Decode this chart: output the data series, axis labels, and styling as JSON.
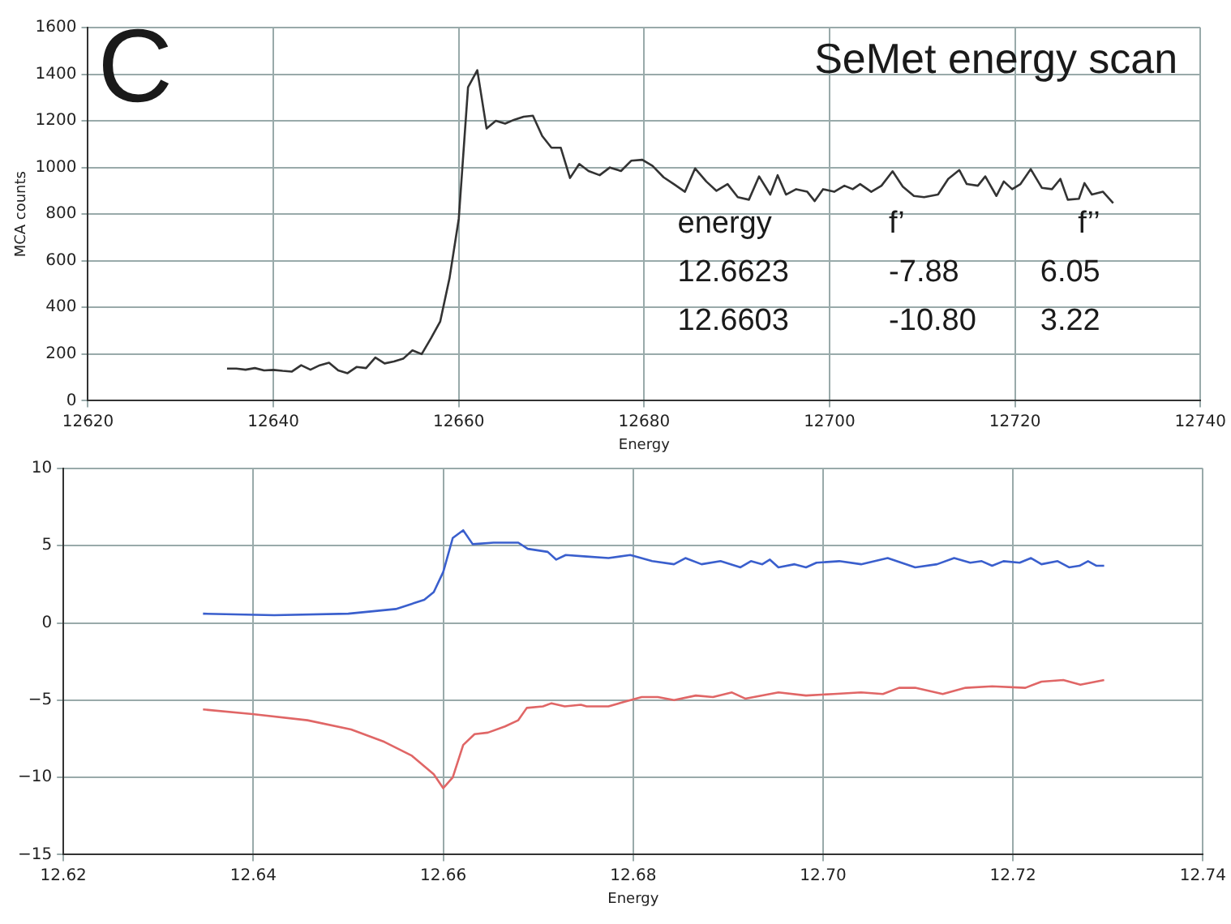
{
  "chart_data": [
    {
      "type": "line",
      "xlabel": "Energy",
      "ylabel": "MCA counts",
      "xlim": [
        12620,
        12740
      ],
      "xticks": [
        12620,
        12640,
        12660,
        12680,
        12700,
        12720,
        12740
      ],
      "ylim": [
        0,
        1600
      ],
      "yticks": [
        0,
        200,
        400,
        600,
        800,
        1000,
        1200,
        1400,
        1600
      ],
      "grid": true,
      "annotations": [
        "C",
        "SeMet energy scan",
        "energy",
        "f’",
        "f’’",
        "12.6623",
        "-7.88",
        "6.05",
        "12.6603",
        "-10.80",
        "3.22"
      ],
      "series": [
        {
          "color": "#333333",
          "x": [
            12635,
            12636,
            12637,
            12638,
            12639,
            12640,
            12641,
            12642,
            12643,
            12644,
            12645,
            12646,
            12647,
            12648,
            12649,
            12650,
            12651,
            12652,
            12653,
            12654,
            12655,
            12656,
            12657,
            12658,
            12659,
            12660,
            12661,
            12662,
            12663,
            12664,
            12665,
            12666,
            12667,
            12668,
            12669,
            12670,
            12671,
            12672,
            12673,
            12674,
            12675.2,
            12676.3,
            12677.5,
            12678.6,
            12679.8,
            12680.9,
            12682.1,
            12683.2,
            12684.4,
            12685.5,
            12686.7,
            12687.8,
            12689.0,
            12690.1,
            12691.3,
            12692.4,
            12693.6,
            12694.4,
            12695.3,
            12696.4,
            12697.6,
            12698.4,
            12699.3,
            12700.5,
            12701.6,
            12702.5,
            12703.3,
            12704.5,
            12705.6,
            12706.8,
            12707.9,
            12709.1,
            12710.2,
            12711.7,
            12712.8,
            12714.0,
            12714.8,
            12716.0,
            12716.8,
            12718.0,
            12718.8,
            12719.7,
            12720.6,
            12721.7,
            12722.9,
            12724.0,
            12724.9,
            12725.7,
            12726.9,
            12727.5,
            12728.3,
            12729.5,
            12730.6
          ],
          "values": [
            138,
            138,
            133,
            140,
            130,
            132,
            128,
            125,
            152,
            133,
            152,
            163,
            130,
            118,
            145,
            140,
            185,
            160,
            168,
            180,
            216,
            200,
            268,
            340,
            525,
            780,
            1344,
            1417,
            1167,
            1200,
            1188,
            1205,
            1218,
            1222,
            1135,
            1085,
            1085,
            955,
            1015,
            985,
            967,
            1000,
            985,
            1029,
            1033,
            1007,
            958,
            929,
            896,
            996,
            940,
            900,
            929,
            873,
            862,
            962,
            884,
            967,
            884,
            907,
            896,
            856,
            907,
            896,
            922,
            907,
            929,
            896,
            922,
            984,
            918,
            878,
            873,
            884,
            951,
            989,
            929,
            922,
            962,
            878,
            940,
            907,
            929,
            993,
            913,
            907,
            951,
            862,
            866,
            933,
            884,
            896,
            847
          ]
        }
      ]
    },
    {
      "type": "line",
      "xlabel": "Energy",
      "xlim": [
        12.62,
        12.74
      ],
      "xticks": [
        {
          "value": 12.62,
          "label": "12.62"
        },
        {
          "value": 12.64,
          "label": "12.64"
        },
        {
          "value": 12.66,
          "label": "12.66"
        },
        {
          "value": 12.68,
          "label": "12.68"
        },
        {
          "value": 12.7,
          "label": "12.70"
        },
        {
          "value": 12.72,
          "label": "12.72"
        },
        {
          "value": 12.74,
          "label": "12.74"
        }
      ],
      "ylim": [
        -15,
        10
      ],
      "yticks": [
        {
          "value": -15,
          "label": "−15"
        },
        {
          "value": -10,
          "label": "−10"
        },
        {
          "value": -5,
          "label": "−5"
        },
        0,
        5,
        10
      ],
      "grid": true,
      "series": [
        {
          "color": "#3a5fcd",
          "x": [
            12.6347,
            12.6422,
            12.65,
            12.655,
            12.658,
            12.659,
            12.66,
            12.661,
            12.6621,
            12.6631,
            12.6653,
            12.6679,
            12.6689,
            12.671,
            12.6719,
            12.6729,
            12.6751,
            12.6774,
            12.6797,
            12.682,
            12.6843,
            12.6855,
            12.6872,
            12.6892,
            12.6913,
            12.6924,
            12.6936,
            12.6944,
            12.6953,
            12.697,
            12.6982,
            12.6993,
            12.7017,
            12.704,
            12.7068,
            12.7097,
            12.712,
            12.7138,
            12.7155,
            12.7167,
            12.7178,
            12.719,
            12.7207,
            12.7219,
            12.723,
            12.7247,
            12.7259,
            12.727,
            12.7279,
            12.7288,
            12.7296
          ],
          "values": [
            0.6,
            0.5,
            0.6,
            0.9,
            1.5,
            2.0,
            3.3,
            5.5,
            6.0,
            5.1,
            5.2,
            5.2,
            4.8,
            4.6,
            4.1,
            4.4,
            4.3,
            4.2,
            4.4,
            4.0,
            3.8,
            4.2,
            3.8,
            4.0,
            3.6,
            4.0,
            3.8,
            4.1,
            3.6,
            3.8,
            3.6,
            3.9,
            4.0,
            3.8,
            4.2,
            3.6,
            3.8,
            4.2,
            3.9,
            4.0,
            3.7,
            4.0,
            3.9,
            4.2,
            3.8,
            4.0,
            3.6,
            3.7,
            4.0,
            3.7,
            3.7
          ]
        },
        {
          "color": "#e06666",
          "x": [
            12.6347,
            12.6399,
            12.6457,
            12.6503,
            12.6538,
            12.6567,
            12.659,
            12.66,
            12.661,
            12.6621,
            12.6633,
            12.6647,
            12.6665,
            12.6679,
            12.6688,
            12.6705,
            12.6714,
            12.6728,
            12.6745,
            12.6751,
            12.6774,
            12.6791,
            12.6809,
            12.6826,
            12.6843,
            12.6866,
            12.6884,
            12.6904,
            12.6918,
            12.6953,
            12.6982,
            12.7011,
            12.704,
            12.7063,
            12.708,
            12.7097,
            12.7126,
            12.715,
            12.7178,
            12.7213,
            12.723,
            12.7253,
            12.7271,
            12.7296
          ],
          "values": [
            -5.6,
            -5.9,
            -6.3,
            -6.9,
            -7.7,
            -8.6,
            -9.8,
            -10.7,
            -10.0,
            -7.9,
            -7.2,
            -7.1,
            -6.7,
            -6.3,
            -5.5,
            -5.4,
            -5.2,
            -5.4,
            -5.3,
            -5.4,
            -5.4,
            -5.1,
            -4.8,
            -4.8,
            -5.0,
            -4.7,
            -4.8,
            -4.5,
            -4.9,
            -4.5,
            -4.7,
            -4.6,
            -4.5,
            -4.6,
            -4.2,
            -4.2,
            -4.6,
            -4.2,
            -4.1,
            -4.2,
            -3.8,
            -3.7,
            -4.0,
            -3.7
          ]
        }
      ]
    }
  ]
}
